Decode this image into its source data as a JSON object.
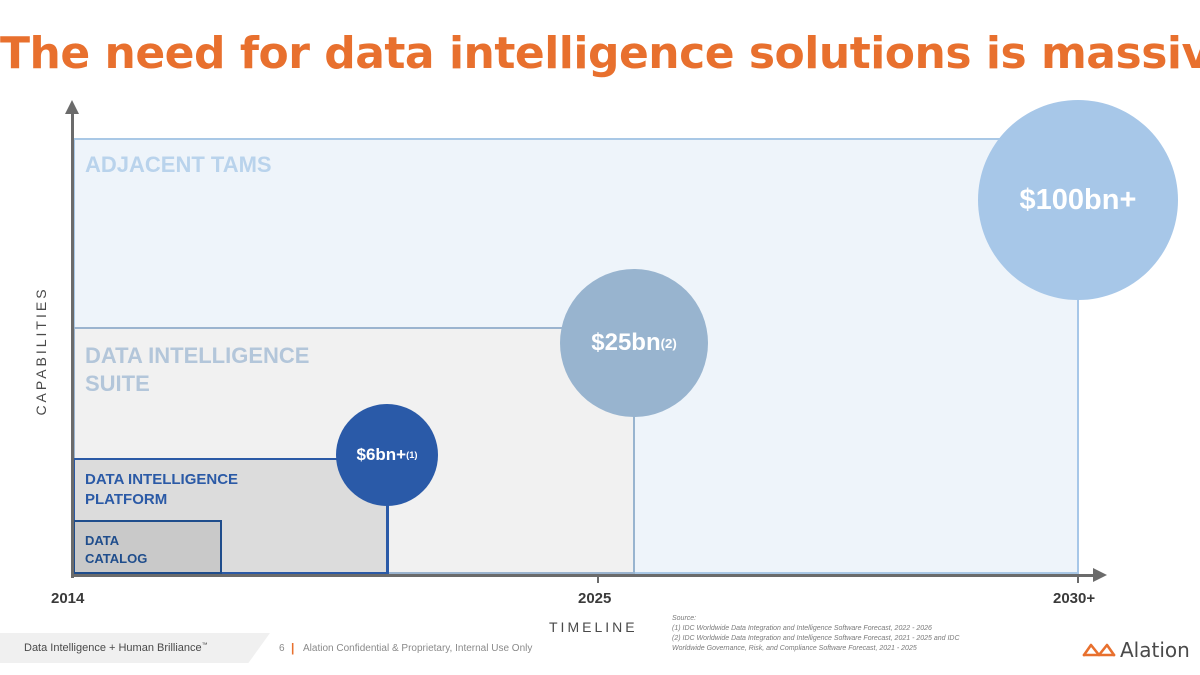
{
  "title": "The need for data intelligence solutions is massive",
  "segments": {
    "adjacent": "ADJACENT TAMS",
    "suite_line1": "DATA INTELLIGENCE",
    "suite_line2": "SUITE",
    "platform_line1": "DATA INTELLIGENCE",
    "platform_line2": "PLATFORM",
    "catalog_line1": "DATA",
    "catalog_line2": "CATALOG"
  },
  "markets": {
    "c6": {
      "value": "$6bn+",
      "note": "(1)"
    },
    "c25": {
      "value": "$25bn",
      "note": "(2)"
    },
    "c100": {
      "value": "$100bn+",
      "note": ""
    }
  },
  "axis": {
    "x_title": "TIMELINE",
    "y_title": "CAPABILITIES",
    "ticks": [
      "2014",
      "2025",
      "2030+"
    ]
  },
  "source": {
    "heading": "Source:",
    "line1": "(1) IDC Worldwide Data Integration and Intelligence Software Forecast, 2022 - 2026",
    "line2": "(2)  IDC Worldwide Data Integration and Intelligence Software Forecast, 2021 - 2025 and IDC",
    "line3": "Worldwide Governance, Risk, and Compliance Software Forecast, 2021 - 2025"
  },
  "footer": {
    "tagline": "Data Intelligence + Human Brilliance",
    "tm": "™",
    "page": "6",
    "separator": "|",
    "confidential": "Alation Confidential & Proprietary, Internal Use Only"
  },
  "logo": {
    "text": "Alation"
  },
  "colors": {
    "accent": "#e8702e",
    "circle_6bn": "#2a5aa8",
    "circle_25bn": "#98b4cf",
    "circle_100bn": "#a7c7e8"
  }
}
